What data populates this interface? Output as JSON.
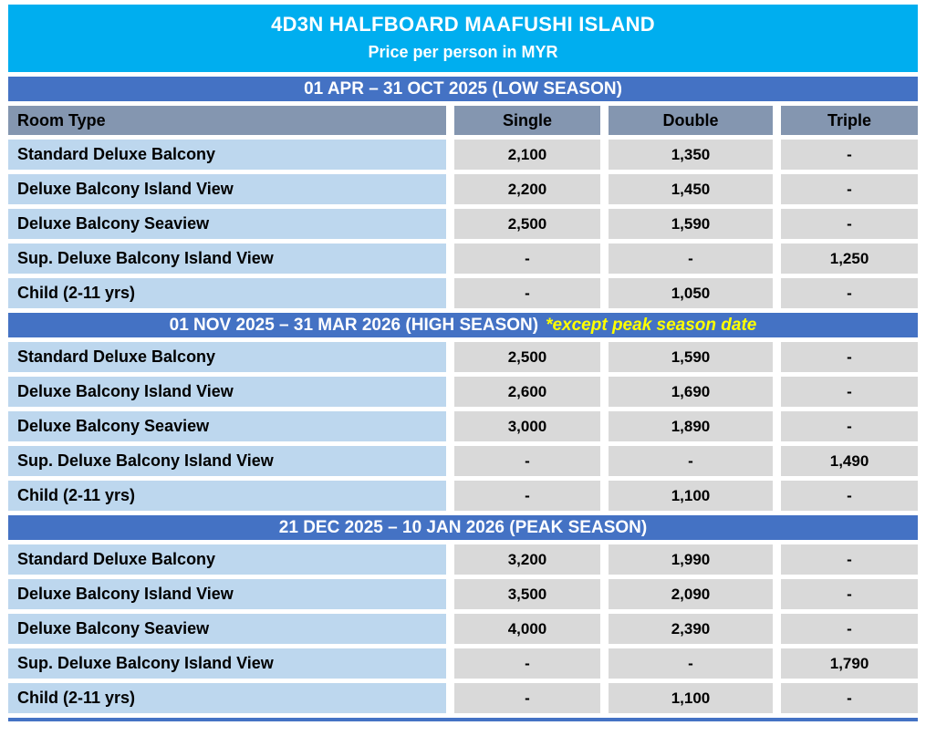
{
  "chart_data": {
    "type": "table",
    "title": "4D3N HALFBOARD MAAFUSHI ISLAND",
    "subtitle": "Price per person in MYR",
    "columns": [
      "Room Type",
      "Single",
      "Double",
      "Triple"
    ],
    "sections": [
      {
        "header": "01 APR – 31 OCT 2025 (LOW SEASON)",
        "note": "",
        "rows": [
          {
            "room": "Standard Deluxe Balcony",
            "single": "2,100",
            "double": "1,350",
            "triple": "-"
          },
          {
            "room": "Deluxe Balcony Island View",
            "single": "2,200",
            "double": "1,450",
            "triple": "-"
          },
          {
            "room": "Deluxe Balcony Seaview",
            "single": "2,500",
            "double": "1,590",
            "triple": "-"
          },
          {
            "room": "Sup. Deluxe Balcony Island View",
            "single": "-",
            "double": "-",
            "triple": "1,250"
          },
          {
            "room": "Child (2-11 yrs)",
            "single": "-",
            "double": "1,050",
            "triple": "-"
          }
        ]
      },
      {
        "header": "01 NOV 2025 – 31 MAR 2026 (HIGH SEASON)",
        "note": "*except peak season date",
        "rows": [
          {
            "room": "Standard Deluxe Balcony",
            "single": "2,500",
            "double": "1,590",
            "triple": "-"
          },
          {
            "room": "Deluxe Balcony Island View",
            "single": "2,600",
            "double": "1,690",
            "triple": "-"
          },
          {
            "room": "Deluxe Balcony Seaview",
            "single": "3,000",
            "double": "1,890",
            "triple": "-"
          },
          {
            "room": "Sup. Deluxe Balcony Island View",
            "single": "-",
            "double": "-",
            "triple": "1,490"
          },
          {
            "room": "Child (2-11 yrs)",
            "single": "-",
            "double": "1,100",
            "triple": "-"
          }
        ]
      },
      {
        "header": "21 DEC 2025 – 10 JAN 2026 (PEAK SEASON)",
        "note": "",
        "rows": [
          {
            "room": "Standard Deluxe Balcony",
            "single": "3,200",
            "double": "1,990",
            "triple": "-"
          },
          {
            "room": "Deluxe Balcony Island View",
            "single": "3,500",
            "double": "2,090",
            "triple": "-"
          },
          {
            "room": "Deluxe Balcony Seaview",
            "single": "4,000",
            "double": "2,390",
            "triple": "-"
          },
          {
            "room": "Sup. Deluxe Balcony Island View",
            "single": "-",
            "double": "-",
            "triple": "1,790"
          },
          {
            "room": "Child (2-11 yrs)",
            "single": "-",
            "double": "1,100",
            "triple": "-"
          }
        ]
      }
    ]
  },
  "colors": {
    "title_bg": "#00AEEF",
    "season_band_bg": "#4472C4",
    "column_header_bg": "#8496B0",
    "room_cell_bg": "#BDD7EE",
    "price_cell_bg": "#D9D9D9",
    "note_text": "#FFFF00",
    "band_text": "#FFFFFF",
    "cell_text": "#000000"
  }
}
